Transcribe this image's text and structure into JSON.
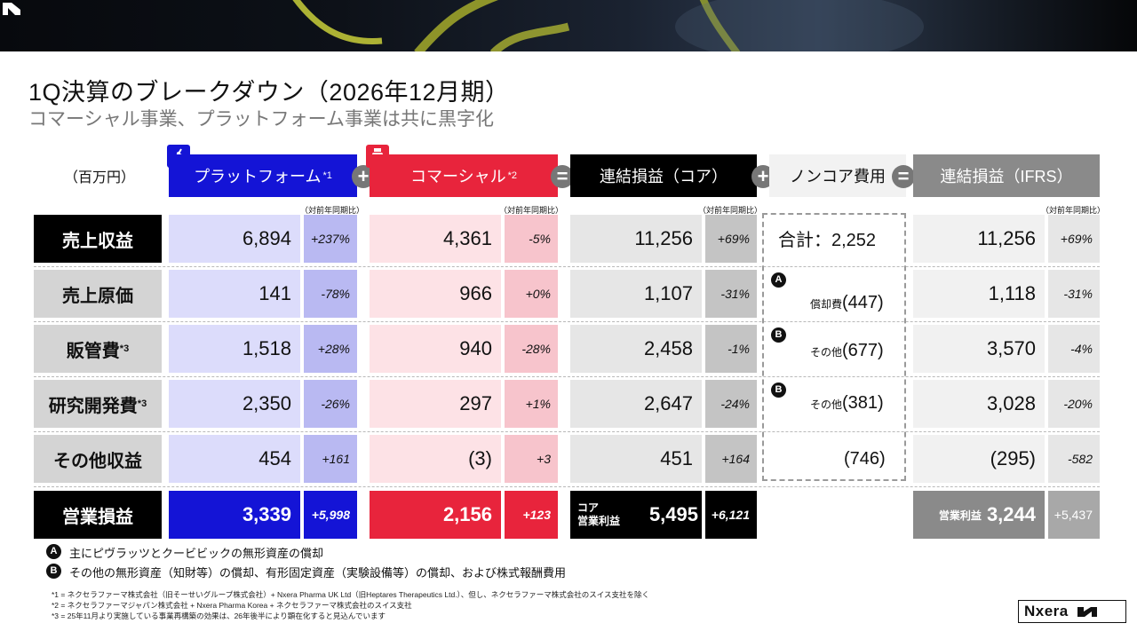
{
  "header": {
    "title": "1Q決算のブレークダウン（2026年12月期）",
    "subtitle": "コマーシャル事業、プラットフォーム事業は共に黒字化",
    "unit": "（百万円）"
  },
  "columns": {
    "platform": {
      "label": "プラットフォーム",
      "note": "*1",
      "yoy_label": "（対前年同期比）",
      "color": "#1414d6",
      "tint": "#dcdcfb",
      "chg_tint": "#b9b9f2"
    },
    "commercial": {
      "label": "コマーシャル",
      "note": "*2",
      "yoy_label": "（対前年同期比）",
      "color": "#e8243c",
      "tint": "#fde2e6",
      "chg_tint": "#f7c4cc"
    },
    "core": {
      "label": "連結損益（コア）",
      "yoy_label": "（対前年同期比）",
      "color": "#000000"
    },
    "noncore": {
      "label": "ノンコア費用"
    },
    "ifrs": {
      "label": "連結損益（IFRS）",
      "yoy_label": "（対前年同期比）",
      "color": "#8a8a8a"
    }
  },
  "operators": {
    "plus": "+",
    "equals": "="
  },
  "rows": [
    {
      "label": "売上収益",
      "note": "",
      "platform": "6,894",
      "platform_chg": "+237%",
      "commercial": "4,361",
      "commercial_chg": "-5%",
      "core": "11,256",
      "core_chg": "+69%",
      "ifrs": "11,256",
      "ifrs_chg": "+69%"
    },
    {
      "label": "売上原価",
      "note": "",
      "platform": "141",
      "platform_chg": "-78%",
      "commercial": "966",
      "commercial_chg": "+0%",
      "core": "1,107",
      "core_chg": "-31%",
      "ifrs": "1,118",
      "ifrs_chg": "-31%"
    },
    {
      "label": "販管費",
      "note": "*3",
      "platform": "1,518",
      "platform_chg": "+28%",
      "commercial": "940",
      "commercial_chg": "-28%",
      "core": "2,458",
      "core_chg": "-1%",
      "ifrs": "3,570",
      "ifrs_chg": "-4%"
    },
    {
      "label": "研究開発費",
      "note": "*3",
      "platform": "2,350",
      "platform_chg": "-26%",
      "commercial": "297",
      "commercial_chg": "+1%",
      "core": "2,647",
      "core_chg": "-24%",
      "ifrs": "3,028",
      "ifrs_chg": "-20%"
    },
    {
      "label": "その他収益",
      "note": "",
      "platform": "454",
      "platform_chg": "+161",
      "commercial": "(3)",
      "commercial_chg": "+3",
      "core": "451",
      "core_chg": "+164",
      "ifrs": "(295)",
      "ifrs_chg": "-582"
    }
  ],
  "total": {
    "label": "営業損益",
    "platform": "3,339",
    "platform_chg": "+5,998",
    "commercial": "2,156",
    "commercial_chg": "+123",
    "core_label_1": "コア",
    "core_label_2": "営業利益",
    "core": "5,495",
    "core_chg": "+6,121",
    "ifrs_label": "営業利益",
    "ifrs": "3,244",
    "ifrs_chg": "+5,437"
  },
  "noncore": {
    "total": "合計：2,252",
    "items": [
      {
        "marker": "A",
        "label": "償却費",
        "value": "(447)"
      },
      {
        "marker": "B",
        "label": "その他",
        "value": "(677)"
      },
      {
        "marker": "B",
        "label": "その他",
        "value": "(381)"
      }
    ],
    "other_income": "(746)"
  },
  "notes": [
    {
      "marker": "A",
      "text": "主にピヴラッツとクービビックの無形資産の償却"
    },
    {
      "marker": "B",
      "text": "その他の無形資産（知財等）の償却、有形固定資産（実験設備等）の償却、および株式報酬費用"
    }
  ],
  "footnotes": [
    "*1 = ネクセラファーマ株式会社（旧そーせいグループ株式会社）+ Nxera Pharma UK Ltd（旧Heptares Therapeutics Ltd.）、但し、ネクセラファーマ株式会社のスイス支社を除く",
    "*2 = ネクセラファーマジャパン株式会社 + Nxera Pharma Korea + ネクセラファーマ株式会社のスイス支社",
    "*3 = 25年11月より実施している事業再構築の効果は、26年後半により顕在化すると見込んでいます"
  ],
  "brand": {
    "name": "Nxera"
  }
}
